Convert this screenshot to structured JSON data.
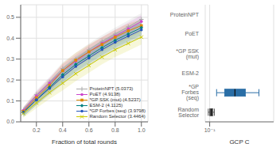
{
  "chart_data": [
    {
      "type": "line",
      "xlabel": "Fraction of total rounds",
      "xlim": [
        0.08,
        1.05
      ],
      "ylim": [
        0.0,
        0.56
      ],
      "xticks": [
        0.2,
        0.4,
        0.6,
        0.8,
        {
          "value": 1.0,
          "label": "1.0"
        }
      ],
      "yticks": [
        {
          "value": 0.0,
          "label": "0.0"
        },
        0.1,
        0.2,
        0.3,
        0.4,
        0.5
      ],
      "grid": true,
      "legend": "lower right",
      "x": [
        0.1,
        0.2,
        0.3,
        0.4,
        0.5,
        0.6,
        0.7,
        0.8,
        0.9,
        1.0
      ],
      "series": [
        {
          "name": "ProteinNPT (5.0373)",
          "color": "#aaaaaa",
          "marker": "plus",
          "line_style": "solid",
          "values": [
            0.055,
            0.13,
            0.19,
            0.255,
            0.3,
            0.345,
            0.385,
            0.42,
            0.455,
            0.49
          ],
          "ci_low": [
            0.04,
            0.11,
            0.165,
            0.225,
            0.27,
            0.315,
            0.355,
            0.39,
            0.425,
            0.46
          ],
          "ci_high": [
            0.07,
            0.15,
            0.215,
            0.285,
            0.33,
            0.375,
            0.415,
            0.45,
            0.485,
            0.52
          ]
        },
        {
          "name": "PoET (4.9138)",
          "color": "#cc44cc",
          "marker": "circle",
          "line_style": "solid",
          "values": [
            0.055,
            0.125,
            0.185,
            0.245,
            0.29,
            0.335,
            0.375,
            0.41,
            0.445,
            0.48
          ],
          "ci_low": [
            0.04,
            0.105,
            0.16,
            0.215,
            0.26,
            0.305,
            0.345,
            0.38,
            0.415,
            0.45
          ],
          "ci_high": [
            0.07,
            0.145,
            0.21,
            0.275,
            0.32,
            0.365,
            0.405,
            0.44,
            0.475,
            0.51
          ]
        },
        {
          "name": "*GP SSK (mut) (4.5237)",
          "color": "#dd8800",
          "marker": "square",
          "line_style": "solid",
          "values": [
            0.05,
            0.115,
            0.175,
            0.245,
            0.295,
            0.335,
            0.37,
            0.405,
            0.435,
            0.46
          ],
          "ci_low": [
            0.03,
            0.09,
            0.145,
            0.21,
            0.26,
            0.3,
            0.335,
            0.37,
            0.4,
            0.43
          ],
          "ci_high": [
            0.07,
            0.14,
            0.205,
            0.28,
            0.33,
            0.37,
            0.405,
            0.44,
            0.47,
            0.49
          ]
        },
        {
          "name": "ESM-2 (4.1125)",
          "color": "#008080",
          "marker": "diamond",
          "line_style": "solid",
          "values": [
            0.045,
            0.105,
            0.165,
            0.225,
            0.275,
            0.315,
            0.355,
            0.39,
            0.42,
            0.45
          ],
          "ci_low": [
            0.025,
            0.08,
            0.135,
            0.19,
            0.24,
            0.28,
            0.32,
            0.355,
            0.385,
            0.415
          ],
          "ci_high": [
            0.065,
            0.13,
            0.195,
            0.26,
            0.31,
            0.35,
            0.39,
            0.425,
            0.455,
            0.485
          ]
        },
        {
          "name": "*GP Forbes (seq) (3.9798)",
          "color": "#2255bb",
          "marker": "circle",
          "line_style": "solid",
          "values": [
            0.045,
            0.105,
            0.16,
            0.215,
            0.265,
            0.305,
            0.345,
            0.38,
            0.41,
            0.44
          ],
          "ci_low": [
            0.025,
            0.08,
            0.13,
            0.18,
            0.23,
            0.27,
            0.31,
            0.345,
            0.375,
            0.405
          ],
          "ci_high": [
            0.065,
            0.13,
            0.19,
            0.25,
            0.3,
            0.34,
            0.38,
            0.415,
            0.445,
            0.475
          ]
        },
        {
          "name": "Random Selector (3.4464)",
          "color": "#cccc00",
          "marker": "x",
          "line_style": "solid",
          "values": [
            0.04,
            0.09,
            0.14,
            0.185,
            0.23,
            0.27,
            0.31,
            0.345,
            0.375,
            0.405
          ],
          "ci_low": [
            0.02,
            0.065,
            0.11,
            0.15,
            0.195,
            0.235,
            0.275,
            0.31,
            0.34,
            0.37
          ],
          "ci_high": [
            0.06,
            0.115,
            0.17,
            0.22,
            0.265,
            0.305,
            0.345,
            0.38,
            0.41,
            0.44
          ]
        }
      ]
    },
    {
      "type": "box",
      "orientation": "horizontal",
      "xlabel": "GCP C",
      "log": "x",
      "grid": "x",
      "xlim": [
        0.06,
        150
      ],
      "xticks": [
        {
          "value": 0.1,
          "label": "10⁻¹"
        }
      ],
      "categories": [
        "Random Selector",
        "*GP Forbes (seq)",
        "ESM-2",
        "*GP SSK (mut)",
        "PoET",
        "ProteinNPT"
      ],
      "boxes": [
        {
          "category": "Random Selector",
          "median": 0.12,
          "q1": 0.1,
          "q3": 0.145,
          "whisker_low": 0.085,
          "whisker_high": 0.17,
          "color": "#555555"
        },
        {
          "category": "*GP Forbes (seq)",
          "median": 1.8,
          "q1": 0.55,
          "q3": 6.0,
          "whisker_low": 0.22,
          "whisker_high": 28.0,
          "color": "#2a6ea6"
        }
      ]
    }
  ]
}
